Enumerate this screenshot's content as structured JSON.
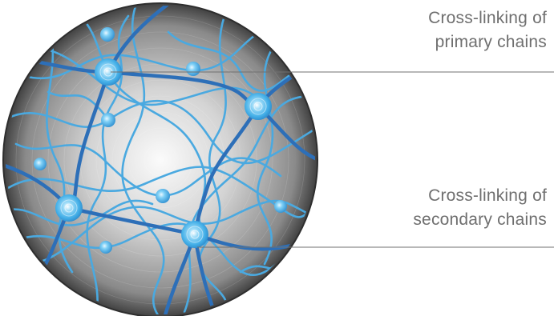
{
  "labels": {
    "primary": {
      "line1": "Cross-linking of",
      "line2": "primary chains"
    },
    "secondary": {
      "line1": "Cross-linking of",
      "line2": "secondary chains"
    }
  },
  "colors": {
    "primary_chain": "#2d6fb8",
    "secondary_chain": "#4aa9e0",
    "node": "#4ab4ec",
    "sphere_light": "#f4f4f4",
    "sphere_dark": "#3a3a3a",
    "leader_line": "#707070",
    "label_text": "#6f6f6f"
  }
}
